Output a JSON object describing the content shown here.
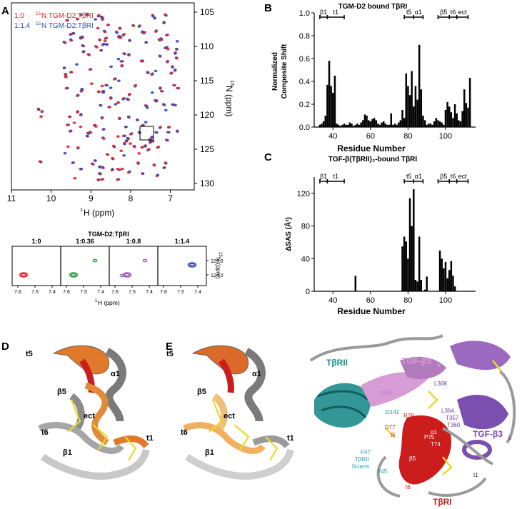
{
  "panel_labels": {
    "A": "A",
    "B": "B",
    "C": "C",
    "D": "D",
    "E": "E"
  },
  "nmr": {
    "legend": [
      {
        "ratio": "1:0",
        "label_pre": "15",
        "label": "N TGM-D2:TβRI",
        "color": "#e8202a"
      },
      {
        "ratio": "1:1.4",
        "label_pre": "15",
        "label": "N TGM-D2:TβRI",
        "color": "#2f4bb5"
      }
    ],
    "x_ticks": [
      "11",
      "10",
      "9",
      "8",
      "7"
    ],
    "y_ticks": [
      "105",
      "110",
      "115",
      "120",
      "125",
      "130"
    ],
    "x_label_sup": "1",
    "x_label": "H  (ppm)",
    "y_label_sup": "15",
    "y_label": "N  (ppm)",
    "titration": {
      "title": "TGM-D2:TβRI",
      "ratios": [
        "1:0",
        "1:0.36",
        "1:0.8",
        "1:1.4"
      ],
      "contour_colors": [
        "#e8202a",
        "#2e9a3a",
        "#9b59b6",
        "#2f4bb5"
      ],
      "x_ticks": [
        [
          "7.6",
          "7.5",
          "7.4"
        ],
        [
          "7.6",
          "7.5",
          "7.4"
        ],
        [
          "7.6",
          "7.5",
          "7.4"
        ],
        [
          "7.6",
          "7.5",
          "7.4"
        ]
      ],
      "y_ticks": [
        "123.0",
        "124.0"
      ],
      "x_label_sup": "1",
      "x_label": "H (ppm)",
      "y_label_sup": "15",
      "y_label": "N (ppm)"
    }
  },
  "chart_data": [
    {
      "type": "bar",
      "title": "TGM-D2 bound TβRI",
      "xlabel": "Residue Number",
      "ylabel": [
        "Normalized",
        "Composite Shift"
      ],
      "xlim": [
        30,
        116
      ],
      "ylim": [
        0,
        1.0
      ],
      "x_ticks": [
        40,
        60,
        80,
        100
      ],
      "y_ticks": [
        "0.0",
        "0.2",
        "0.4",
        "0.6",
        "0.8",
        "1.0"
      ],
      "x": [
        33,
        34,
        35,
        36,
        37,
        38,
        39,
        40,
        41,
        42,
        43,
        44,
        45,
        46,
        47,
        48,
        49,
        50,
        51,
        52,
        53,
        54,
        55,
        56,
        57,
        58,
        59,
        60,
        61,
        62,
        63,
        64,
        65,
        66,
        67,
        68,
        69,
        70,
        71,
        72,
        73,
        74,
        75,
        76,
        77,
        78,
        79,
        80,
        81,
        82,
        83,
        84,
        85,
        86,
        87,
        88,
        89,
        90,
        91,
        92,
        93,
        94,
        95,
        96,
        97,
        98,
        99,
        100,
        101,
        102,
        103,
        104,
        105,
        106,
        107,
        108,
        109,
        110,
        111,
        112,
        113
      ],
      "values": [
        0.02,
        0.03,
        0.05,
        0.1,
        0.37,
        0.58,
        0.36,
        0.3,
        0.45,
        0.03,
        0.02,
        0.01,
        0.02,
        0.03,
        0.02,
        0.02,
        0.04,
        0.03,
        0.01,
        0.02,
        0.03,
        0.02,
        0.04,
        0.06,
        0.11,
        0.1,
        0.06,
        0.05,
        0.07,
        0.08,
        0.06,
        0.03,
        0.02,
        0.04,
        0.05,
        0.03,
        0.02,
        0.02,
        0.12,
        0.02,
        0.03,
        0.02,
        0.04,
        0.06,
        0.15,
        0.08,
        0.47,
        0.36,
        0.28,
        0.49,
        0.18,
        0.36,
        0.24,
        0.72,
        0.33,
        0.1,
        0.06,
        0.02,
        0.03,
        0.03,
        0.02,
        0.05,
        0.08,
        0.06,
        0.05,
        0.04,
        0.02,
        0.15,
        0.22,
        0.18,
        0.13,
        0.08,
        0.2,
        0.12,
        0.06,
        0.05,
        0.14,
        0.33,
        0.21,
        0.17,
        0.43
      ],
      "secondary_structure": [
        {
          "label": "β1",
          "from": 33,
          "to": 37
        },
        {
          "label": "t1",
          "from": 37,
          "to": 46
        },
        {
          "label": "t5",
          "from": 78,
          "to": 83
        },
        {
          "label": "α1",
          "from": 83,
          "to": 88
        },
        {
          "label": "β5",
          "from": 96,
          "to": 102
        },
        {
          "label": "t6",
          "from": 102,
          "to": 106
        },
        {
          "label": "ect",
          "from": 106,
          "to": 112
        }
      ]
    },
    {
      "type": "bar",
      "title": "TGF-β(TβRII)₂-bound TβRI",
      "xlabel": "Residue Number",
      "ylabel": "ΔSAS (Å²)",
      "xlim": [
        30,
        116
      ],
      "ylim": [
        0,
        140
      ],
      "x_ticks": [
        40,
        60,
        80,
        100
      ],
      "y_ticks": [
        "0",
        "40",
        "80",
        "120"
      ],
      "x": [
        52,
        77,
        78,
        79,
        80,
        81,
        82,
        83,
        84,
        85,
        86,
        87,
        88,
        89,
        90,
        97,
        98,
        99,
        100,
        101,
        102,
        103,
        104,
        105
      ],
      "values": [
        19,
        55,
        67,
        61,
        40,
        114,
        80,
        125,
        14,
        12,
        67,
        14,
        0,
        2,
        18,
        50,
        40,
        28,
        36,
        16,
        26,
        37,
        19,
        6
      ],
      "secondary_structure": [
        {
          "label": "β1",
          "from": 33,
          "to": 37
        },
        {
          "label": "t1",
          "from": 37,
          "to": 46
        },
        {
          "label": "t5",
          "from": 78,
          "to": 83
        },
        {
          "label": "α1",
          "from": 83,
          "to": 88
        },
        {
          "label": "β5",
          "from": 96,
          "to": 102
        },
        {
          "label": "t6",
          "from": 102,
          "to": 106
        },
        {
          "label": "ect",
          "from": 106,
          "to": 112
        }
      ]
    }
  ],
  "structure_d": {
    "labels": [
      "t5",
      "α1",
      "β5",
      "ect",
      "t6",
      "t1",
      "β1"
    ]
  },
  "structure_e": {
    "left_labels": [
      "t5",
      "α1",
      "β5",
      "ect",
      "t6",
      "t1",
      "β1"
    ],
    "chains": {
      "tbrii": "TβRII",
      "tgfb3a": "TGF-β3",
      "tgfb3a_sub": "a",
      "tgfb3b": "TGF-β3",
      "tgfb3b_sub": "b",
      "tbri": "TβRI"
    },
    "residues": [
      "K397",
      "L368",
      "D141",
      "R78",
      "L364",
      "T357",
      "T360",
      "D77",
      "t5",
      "P75",
      "α1",
      "T74",
      "F47",
      "TβRII",
      "N-term",
      "V45",
      "β5",
      "t6",
      "β1",
      "t1"
    ],
    "colors": {
      "tbrii": "#1d8c8c",
      "tgfb3a": "#d79bd6",
      "tgfb3b": "#7b4fb0",
      "tbri": "#cc1d1d",
      "coil": "#9a9a9a",
      "disulfide": "#e6dc2a"
    }
  }
}
